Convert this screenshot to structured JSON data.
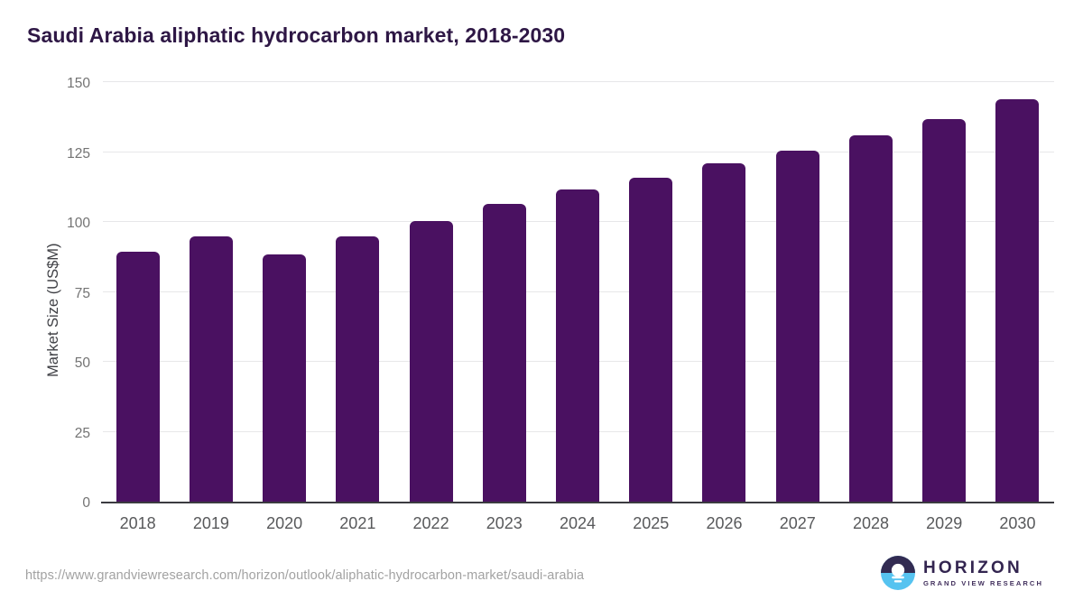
{
  "title": "Saudi Arabia aliphatic hydrocarbon market, 2018-2030",
  "source_url": "https://www.grandviewresearch.com/horizon/outlook/aliphatic-hydrocarbon-market/saudi-arabia",
  "logo": {
    "brand": "HORIZON",
    "sub_brand": "GRAND VIEW RESEARCH"
  },
  "colors": {
    "bar": "#4a1161",
    "title": "#2e1745",
    "gridline": "#e7e7e9",
    "axis_line": "#3b3b40",
    "tick_label": "#737373",
    "x_label": "#58595b",
    "y_axis_title": "#3f4045",
    "url_text": "#a2a2a2",
    "logo_dark": "#322b52",
    "logo_blue": "#56c3f0"
  },
  "chart_data": {
    "type": "bar",
    "title": "Saudi Arabia aliphatic hydrocarbon market, 2018-2030",
    "categories": [
      "2018",
      "2019",
      "2020",
      "2021",
      "2022",
      "2023",
      "2024",
      "2025",
      "2026",
      "2027",
      "2028",
      "2029",
      "2030"
    ],
    "values": [
      89.9,
      95.4,
      88.9,
      95.3,
      100.7,
      106.8,
      112.1,
      116.3,
      121.4,
      126.1,
      131.6,
      137.4,
      144.4
    ],
    "xlabel": "",
    "ylabel": "Market Size (US$M)",
    "ylim": [
      0,
      150
    ],
    "yticks": [
      0,
      25,
      50,
      75,
      100,
      125,
      150
    ],
    "grid": true,
    "legend": false
  }
}
